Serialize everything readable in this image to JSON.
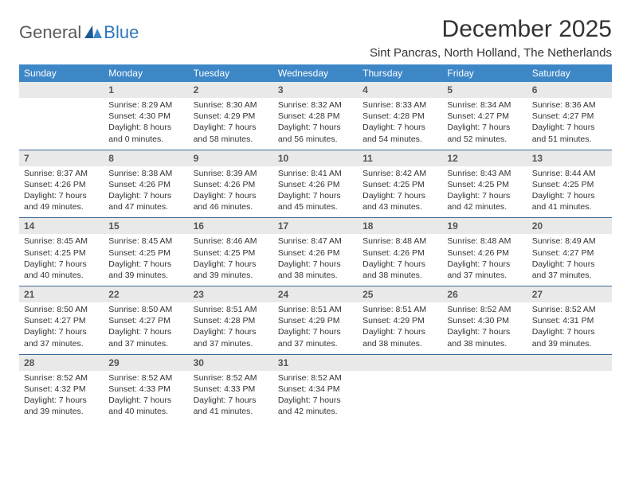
{
  "logo": {
    "general": "General",
    "blue": "Blue"
  },
  "title": "December 2025",
  "location": "Sint Pancras, North Holland, The Netherlands",
  "colors": {
    "header_bg": "#3d87c7",
    "header_text": "#ffffff",
    "daynum_bg": "#e9e9e9",
    "border": "#3d6a94",
    "logo_gray": "#5a5a5a",
    "logo_blue": "#2f78ba"
  },
  "daysOfWeek": [
    "Sunday",
    "Monday",
    "Tuesday",
    "Wednesday",
    "Thursday",
    "Friday",
    "Saturday"
  ],
  "weeks": [
    [
      null,
      {
        "n": "1",
        "sr": "8:29 AM",
        "ss": "4:30 PM",
        "dl": "8 hours and 0 minutes."
      },
      {
        "n": "2",
        "sr": "8:30 AM",
        "ss": "4:29 PM",
        "dl": "7 hours and 58 minutes."
      },
      {
        "n": "3",
        "sr": "8:32 AM",
        "ss": "4:28 PM",
        "dl": "7 hours and 56 minutes."
      },
      {
        "n": "4",
        "sr": "8:33 AM",
        "ss": "4:28 PM",
        "dl": "7 hours and 54 minutes."
      },
      {
        "n": "5",
        "sr": "8:34 AM",
        "ss": "4:27 PM",
        "dl": "7 hours and 52 minutes."
      },
      {
        "n": "6",
        "sr": "8:36 AM",
        "ss": "4:27 PM",
        "dl": "7 hours and 51 minutes."
      }
    ],
    [
      {
        "n": "7",
        "sr": "8:37 AM",
        "ss": "4:26 PM",
        "dl": "7 hours and 49 minutes."
      },
      {
        "n": "8",
        "sr": "8:38 AM",
        "ss": "4:26 PM",
        "dl": "7 hours and 47 minutes."
      },
      {
        "n": "9",
        "sr": "8:39 AM",
        "ss": "4:26 PM",
        "dl": "7 hours and 46 minutes."
      },
      {
        "n": "10",
        "sr": "8:41 AM",
        "ss": "4:26 PM",
        "dl": "7 hours and 45 minutes."
      },
      {
        "n": "11",
        "sr": "8:42 AM",
        "ss": "4:25 PM",
        "dl": "7 hours and 43 minutes."
      },
      {
        "n": "12",
        "sr": "8:43 AM",
        "ss": "4:25 PM",
        "dl": "7 hours and 42 minutes."
      },
      {
        "n": "13",
        "sr": "8:44 AM",
        "ss": "4:25 PM",
        "dl": "7 hours and 41 minutes."
      }
    ],
    [
      {
        "n": "14",
        "sr": "8:45 AM",
        "ss": "4:25 PM",
        "dl": "7 hours and 40 minutes."
      },
      {
        "n": "15",
        "sr": "8:45 AM",
        "ss": "4:25 PM",
        "dl": "7 hours and 39 minutes."
      },
      {
        "n": "16",
        "sr": "8:46 AM",
        "ss": "4:25 PM",
        "dl": "7 hours and 39 minutes."
      },
      {
        "n": "17",
        "sr": "8:47 AM",
        "ss": "4:26 PM",
        "dl": "7 hours and 38 minutes."
      },
      {
        "n": "18",
        "sr": "8:48 AM",
        "ss": "4:26 PM",
        "dl": "7 hours and 38 minutes."
      },
      {
        "n": "19",
        "sr": "8:48 AM",
        "ss": "4:26 PM",
        "dl": "7 hours and 37 minutes."
      },
      {
        "n": "20",
        "sr": "8:49 AM",
        "ss": "4:27 PM",
        "dl": "7 hours and 37 minutes."
      }
    ],
    [
      {
        "n": "21",
        "sr": "8:50 AM",
        "ss": "4:27 PM",
        "dl": "7 hours and 37 minutes."
      },
      {
        "n": "22",
        "sr": "8:50 AM",
        "ss": "4:27 PM",
        "dl": "7 hours and 37 minutes."
      },
      {
        "n": "23",
        "sr": "8:51 AM",
        "ss": "4:28 PM",
        "dl": "7 hours and 37 minutes."
      },
      {
        "n": "24",
        "sr": "8:51 AM",
        "ss": "4:29 PM",
        "dl": "7 hours and 37 minutes."
      },
      {
        "n": "25",
        "sr": "8:51 AM",
        "ss": "4:29 PM",
        "dl": "7 hours and 38 minutes."
      },
      {
        "n": "26",
        "sr": "8:52 AM",
        "ss": "4:30 PM",
        "dl": "7 hours and 38 minutes."
      },
      {
        "n": "27",
        "sr": "8:52 AM",
        "ss": "4:31 PM",
        "dl": "7 hours and 39 minutes."
      }
    ],
    [
      {
        "n": "28",
        "sr": "8:52 AM",
        "ss": "4:32 PM",
        "dl": "7 hours and 39 minutes."
      },
      {
        "n": "29",
        "sr": "8:52 AM",
        "ss": "4:33 PM",
        "dl": "7 hours and 40 minutes."
      },
      {
        "n": "30",
        "sr": "8:52 AM",
        "ss": "4:33 PM",
        "dl": "7 hours and 41 minutes."
      },
      {
        "n": "31",
        "sr": "8:52 AM",
        "ss": "4:34 PM",
        "dl": "7 hours and 42 minutes."
      },
      null,
      null,
      null
    ]
  ],
  "labels": {
    "sunrise": "Sunrise:",
    "sunset": "Sunset:",
    "daylight": "Daylight:"
  }
}
